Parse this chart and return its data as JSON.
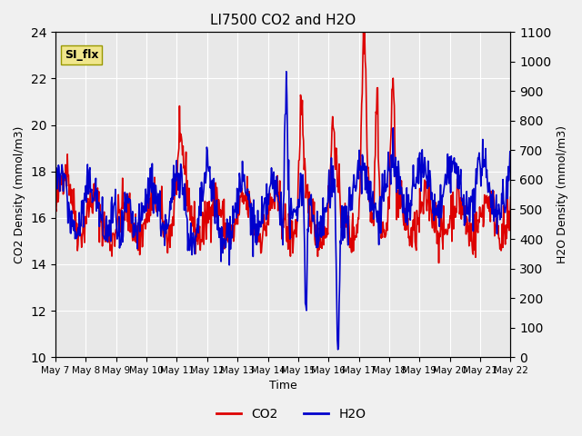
{
  "title": "LI7500 CO2 and H2O",
  "xlabel": "Time",
  "ylabel_left": "CO2 Density (mmol/m3)",
  "ylabel_right": "H2O Density (mmol/m3)",
  "annotation_text": "SI_flx",
  "annotation_bg": "#f0e68c",
  "annotation_edge": "#999900",
  "co2_color": "#dd0000",
  "h2o_color": "#0000cc",
  "ylim_left": [
    10,
    24
  ],
  "ylim_right": [
    0,
    1100
  ],
  "yticks_left": [
    10,
    12,
    14,
    16,
    18,
    20,
    22,
    24
  ],
  "yticks_right": [
    0,
    100,
    200,
    300,
    400,
    500,
    600,
    700,
    800,
    900,
    1000,
    1100
  ],
  "x_tick_labels": [
    "May 7",
    "May 8",
    "May 9",
    "May 10",
    "May 11",
    "May 12",
    "May 13",
    "May 14",
    "May 15",
    "May 16",
    "May 17",
    "May 18",
    "May 19",
    "May 20",
    "May 21",
    "May 22"
  ],
  "plot_bg": "#e8e8e8",
  "fig_bg": "#f0f0f0",
  "legend_co2": "CO2",
  "legend_h2o": "H2O",
  "linewidth": 1.2,
  "grid_color": "#ffffff",
  "xlim": [
    0,
    15
  ]
}
